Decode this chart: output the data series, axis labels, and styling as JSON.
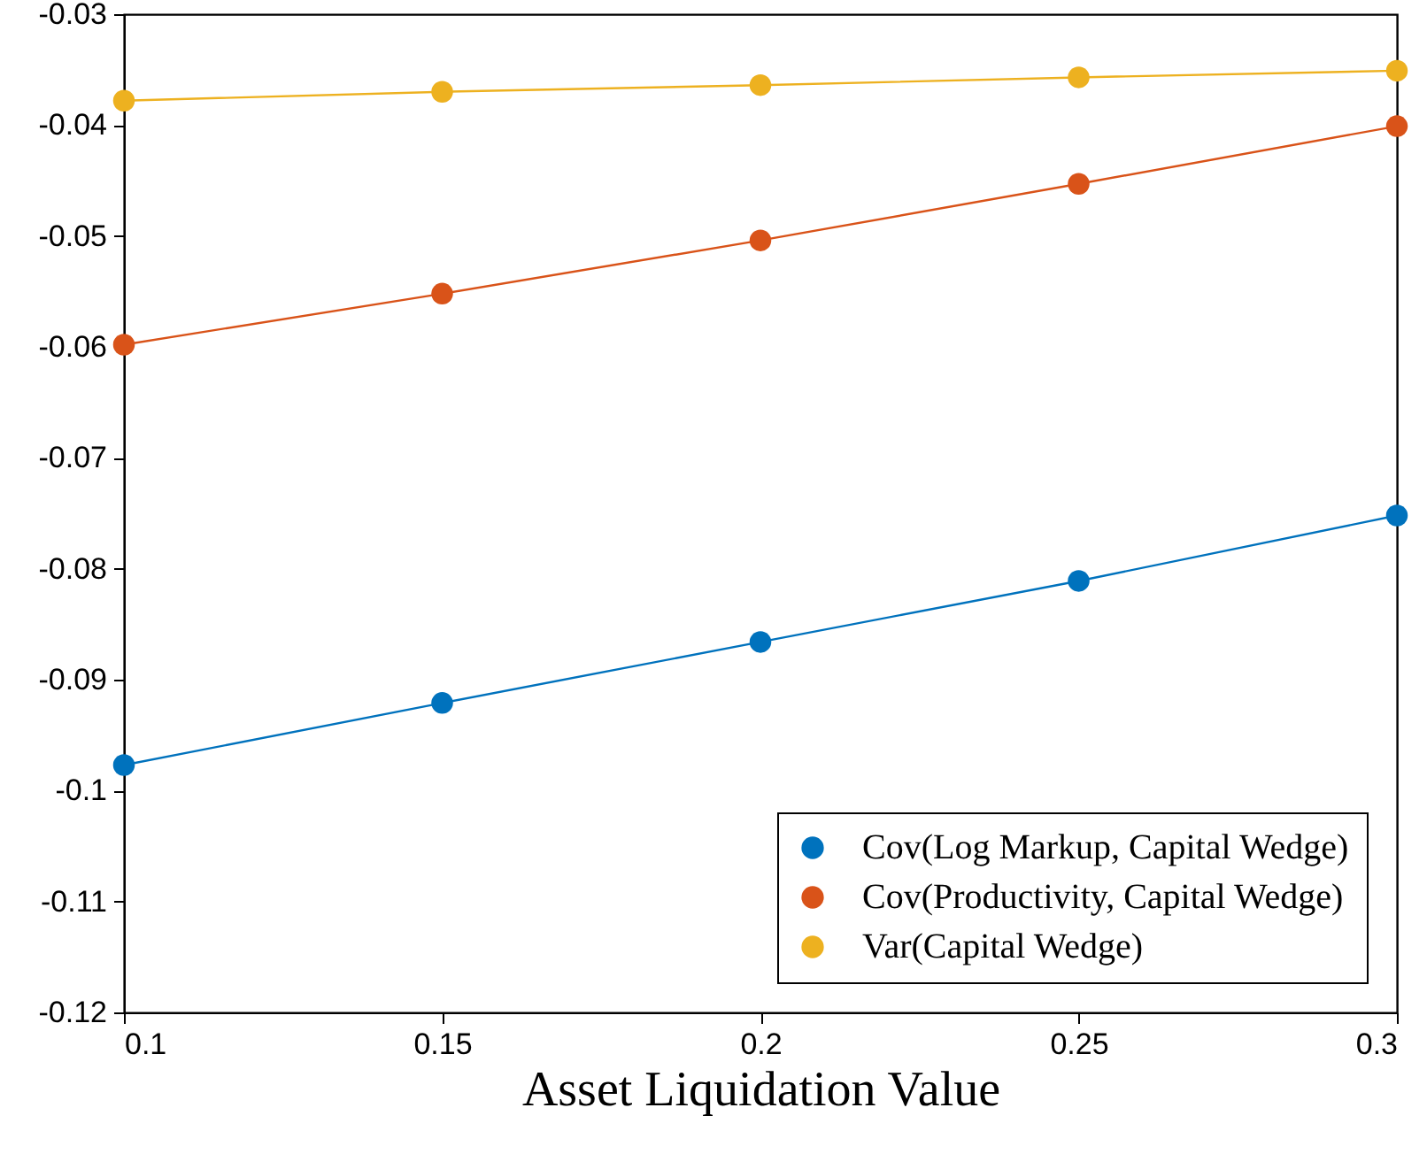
{
  "chart_data": {
    "type": "line",
    "xlabel": "Asset Liquidation Value",
    "x": [
      0.1,
      0.15,
      0.2,
      0.25,
      0.3
    ],
    "series": [
      {
        "name": "Cov(Log Markup, Capital Wedge)",
        "color": "#0072bd",
        "values": [
          -0.0977,
          -0.0921,
          -0.0866,
          -0.0811,
          -0.0752
        ]
      },
      {
        "name": "Cov(Productivity, Capital Wedge)",
        "color": "#d95319",
        "values": [
          -0.0598,
          -0.0552,
          -0.0504,
          -0.0453,
          -0.0401
        ]
      },
      {
        "name": "Var(Capital Wedge)",
        "color": "#edb120",
        "values": [
          -0.0378,
          -0.037,
          -0.0364,
          -0.0357,
          -0.0351
        ]
      }
    ],
    "xlim": [
      0.1,
      0.3
    ],
    "xticks": [
      0.1,
      0.15,
      0.2,
      0.25,
      0.3
    ],
    "ylim": [
      -0.12,
      -0.03
    ],
    "yticks": [
      -0.12,
      -0.11,
      -0.1,
      -0.09,
      -0.08,
      -0.07,
      -0.06,
      -0.05,
      -0.04,
      -0.03
    ],
    "grid": false,
    "legend": "bottom right",
    "marker": "circle",
    "line_style": "solid"
  }
}
